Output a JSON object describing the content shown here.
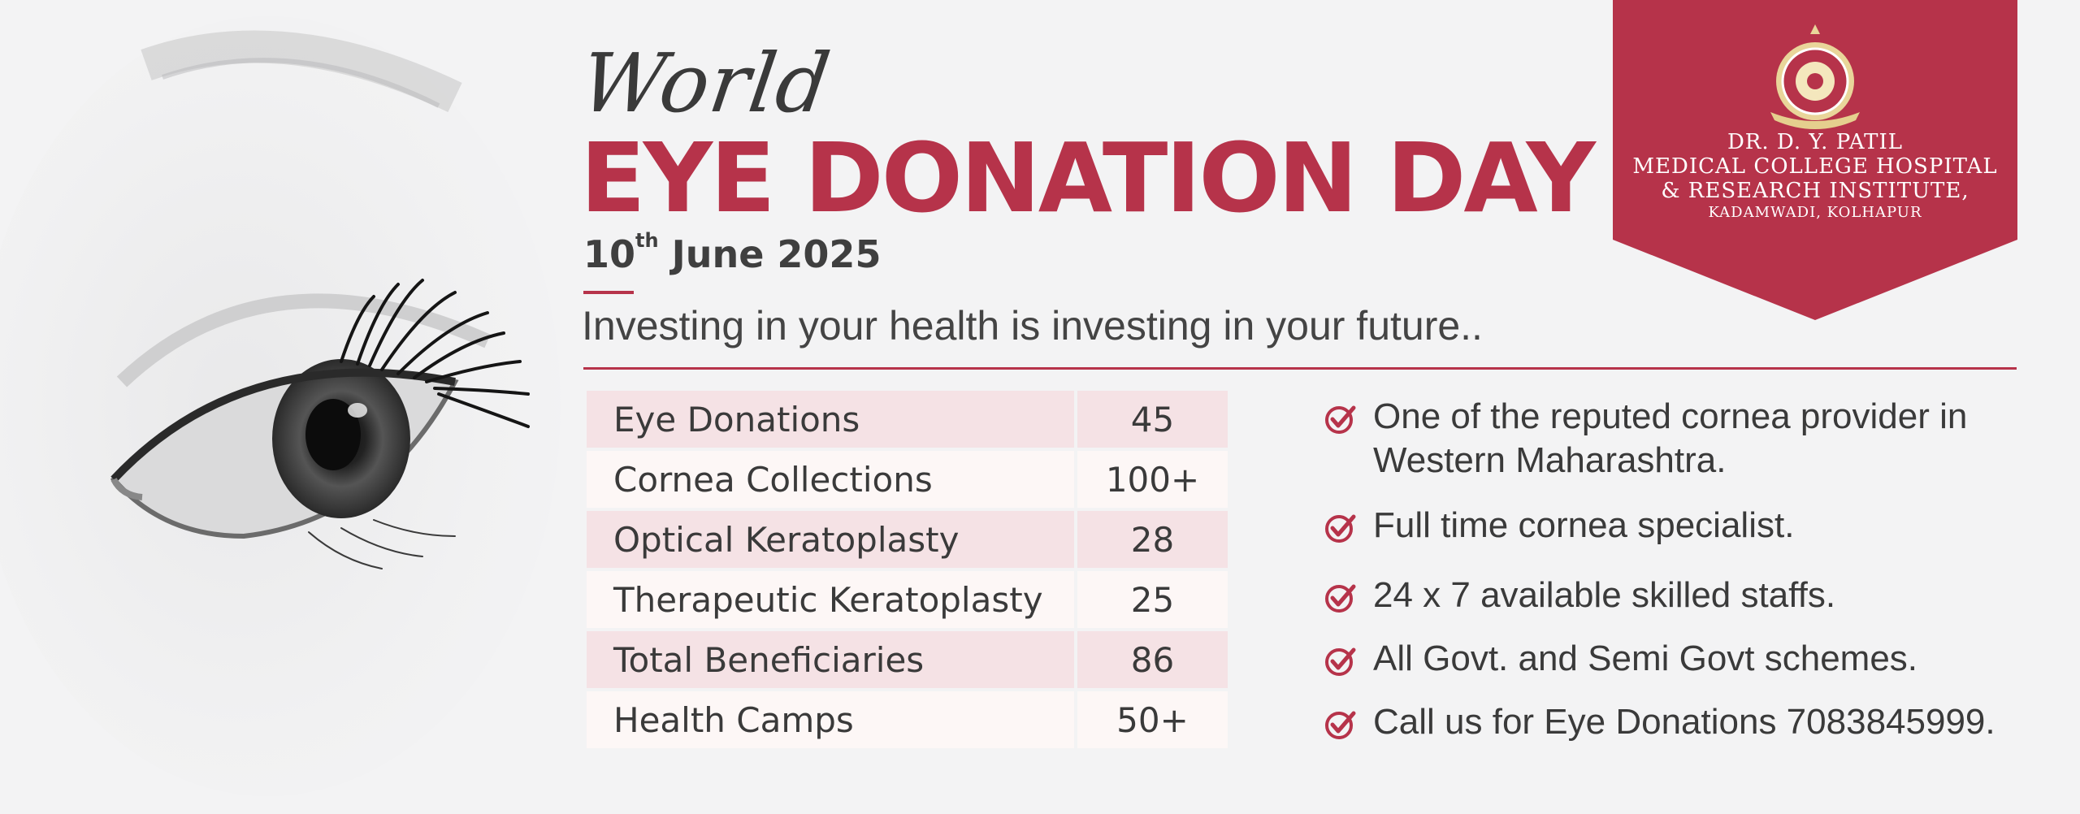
{
  "colors": {
    "accent": "#b6334a",
    "text": "#3a3a3a",
    "row_odd": "#f5e2e5",
    "row_even": "#fdf7f6"
  },
  "hero": {
    "world": "World",
    "title": "EYE DONATION DAY",
    "date_day": "10",
    "date_suffix": "th",
    "date_rest": " June 2025",
    "tagline": "Investing in your health is investing in your future.."
  },
  "institution": {
    "line1": "DR. D. Y. PATIL",
    "line2": "MEDICAL COLLEGE HOSPITAL",
    "line3": "& RESEARCH INSTITUTE,",
    "line4": "KADAMWADI, KOLHAPUR",
    "logo_icon": "seal-emblem-icon"
  },
  "stats": [
    {
      "label": "Eye Donations",
      "value": "45"
    },
    {
      "label": "Cornea Collections",
      "value": "100+"
    },
    {
      "label": "Optical Keratoplasty",
      "value": "28"
    },
    {
      "label": "Therapeutic Keratoplasty",
      "value": "25"
    },
    {
      "label": "Total Beneficiaries",
      "value": "86"
    },
    {
      "label": "Health Camps",
      "value": "50+"
    }
  ],
  "features": [
    "One of the reputed cornea provider in Western Maharashtra.",
    "Full time cornea specialist.",
    "24 x 7 available skilled staffs.",
    "All Govt. and Semi Govt schemes.",
    "Call us for Eye Donations 7083845999."
  ]
}
